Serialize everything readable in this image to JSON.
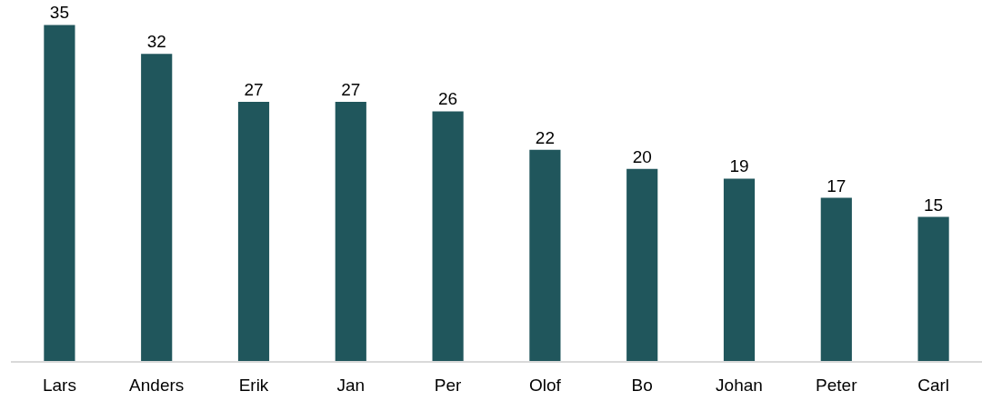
{
  "chart_data": {
    "type": "bar",
    "categories": [
      "Lars",
      "Anders",
      "Erik",
      "Jan",
      "Per",
      "Olof",
      "Bo",
      "Johan",
      "Peter",
      "Carl"
    ],
    "values": [
      35,
      32,
      27,
      27,
      26,
      22,
      20,
      19,
      17,
      15
    ],
    "color": "#20565c",
    "data_labels": true
  }
}
